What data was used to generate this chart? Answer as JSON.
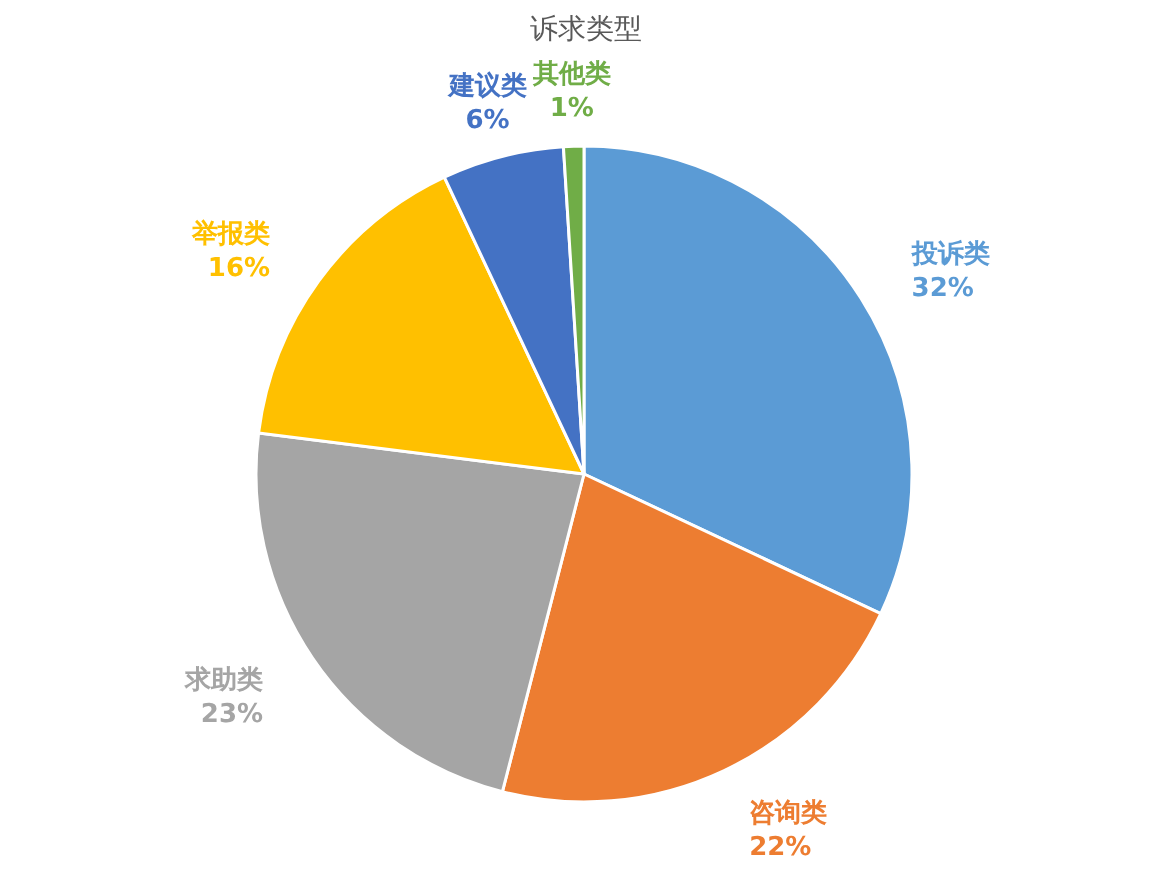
{
  "chart_data": {
    "type": "pie",
    "title": "诉求类型",
    "categories": [
      "投诉类",
      "咨询类",
      "求助类",
      "举报类",
      "建议类",
      "其他类"
    ],
    "values": [
      32,
      22,
      23,
      16,
      6,
      1
    ],
    "colors": [
      "#5b9bd5",
      "#ed7d31",
      "#a5a5a5",
      "#ffc000",
      "#4472c4",
      "#70ad47"
    ],
    "value_labels": [
      "32%",
      "22%",
      "23%",
      "16%",
      "6%",
      "1%"
    ]
  }
}
